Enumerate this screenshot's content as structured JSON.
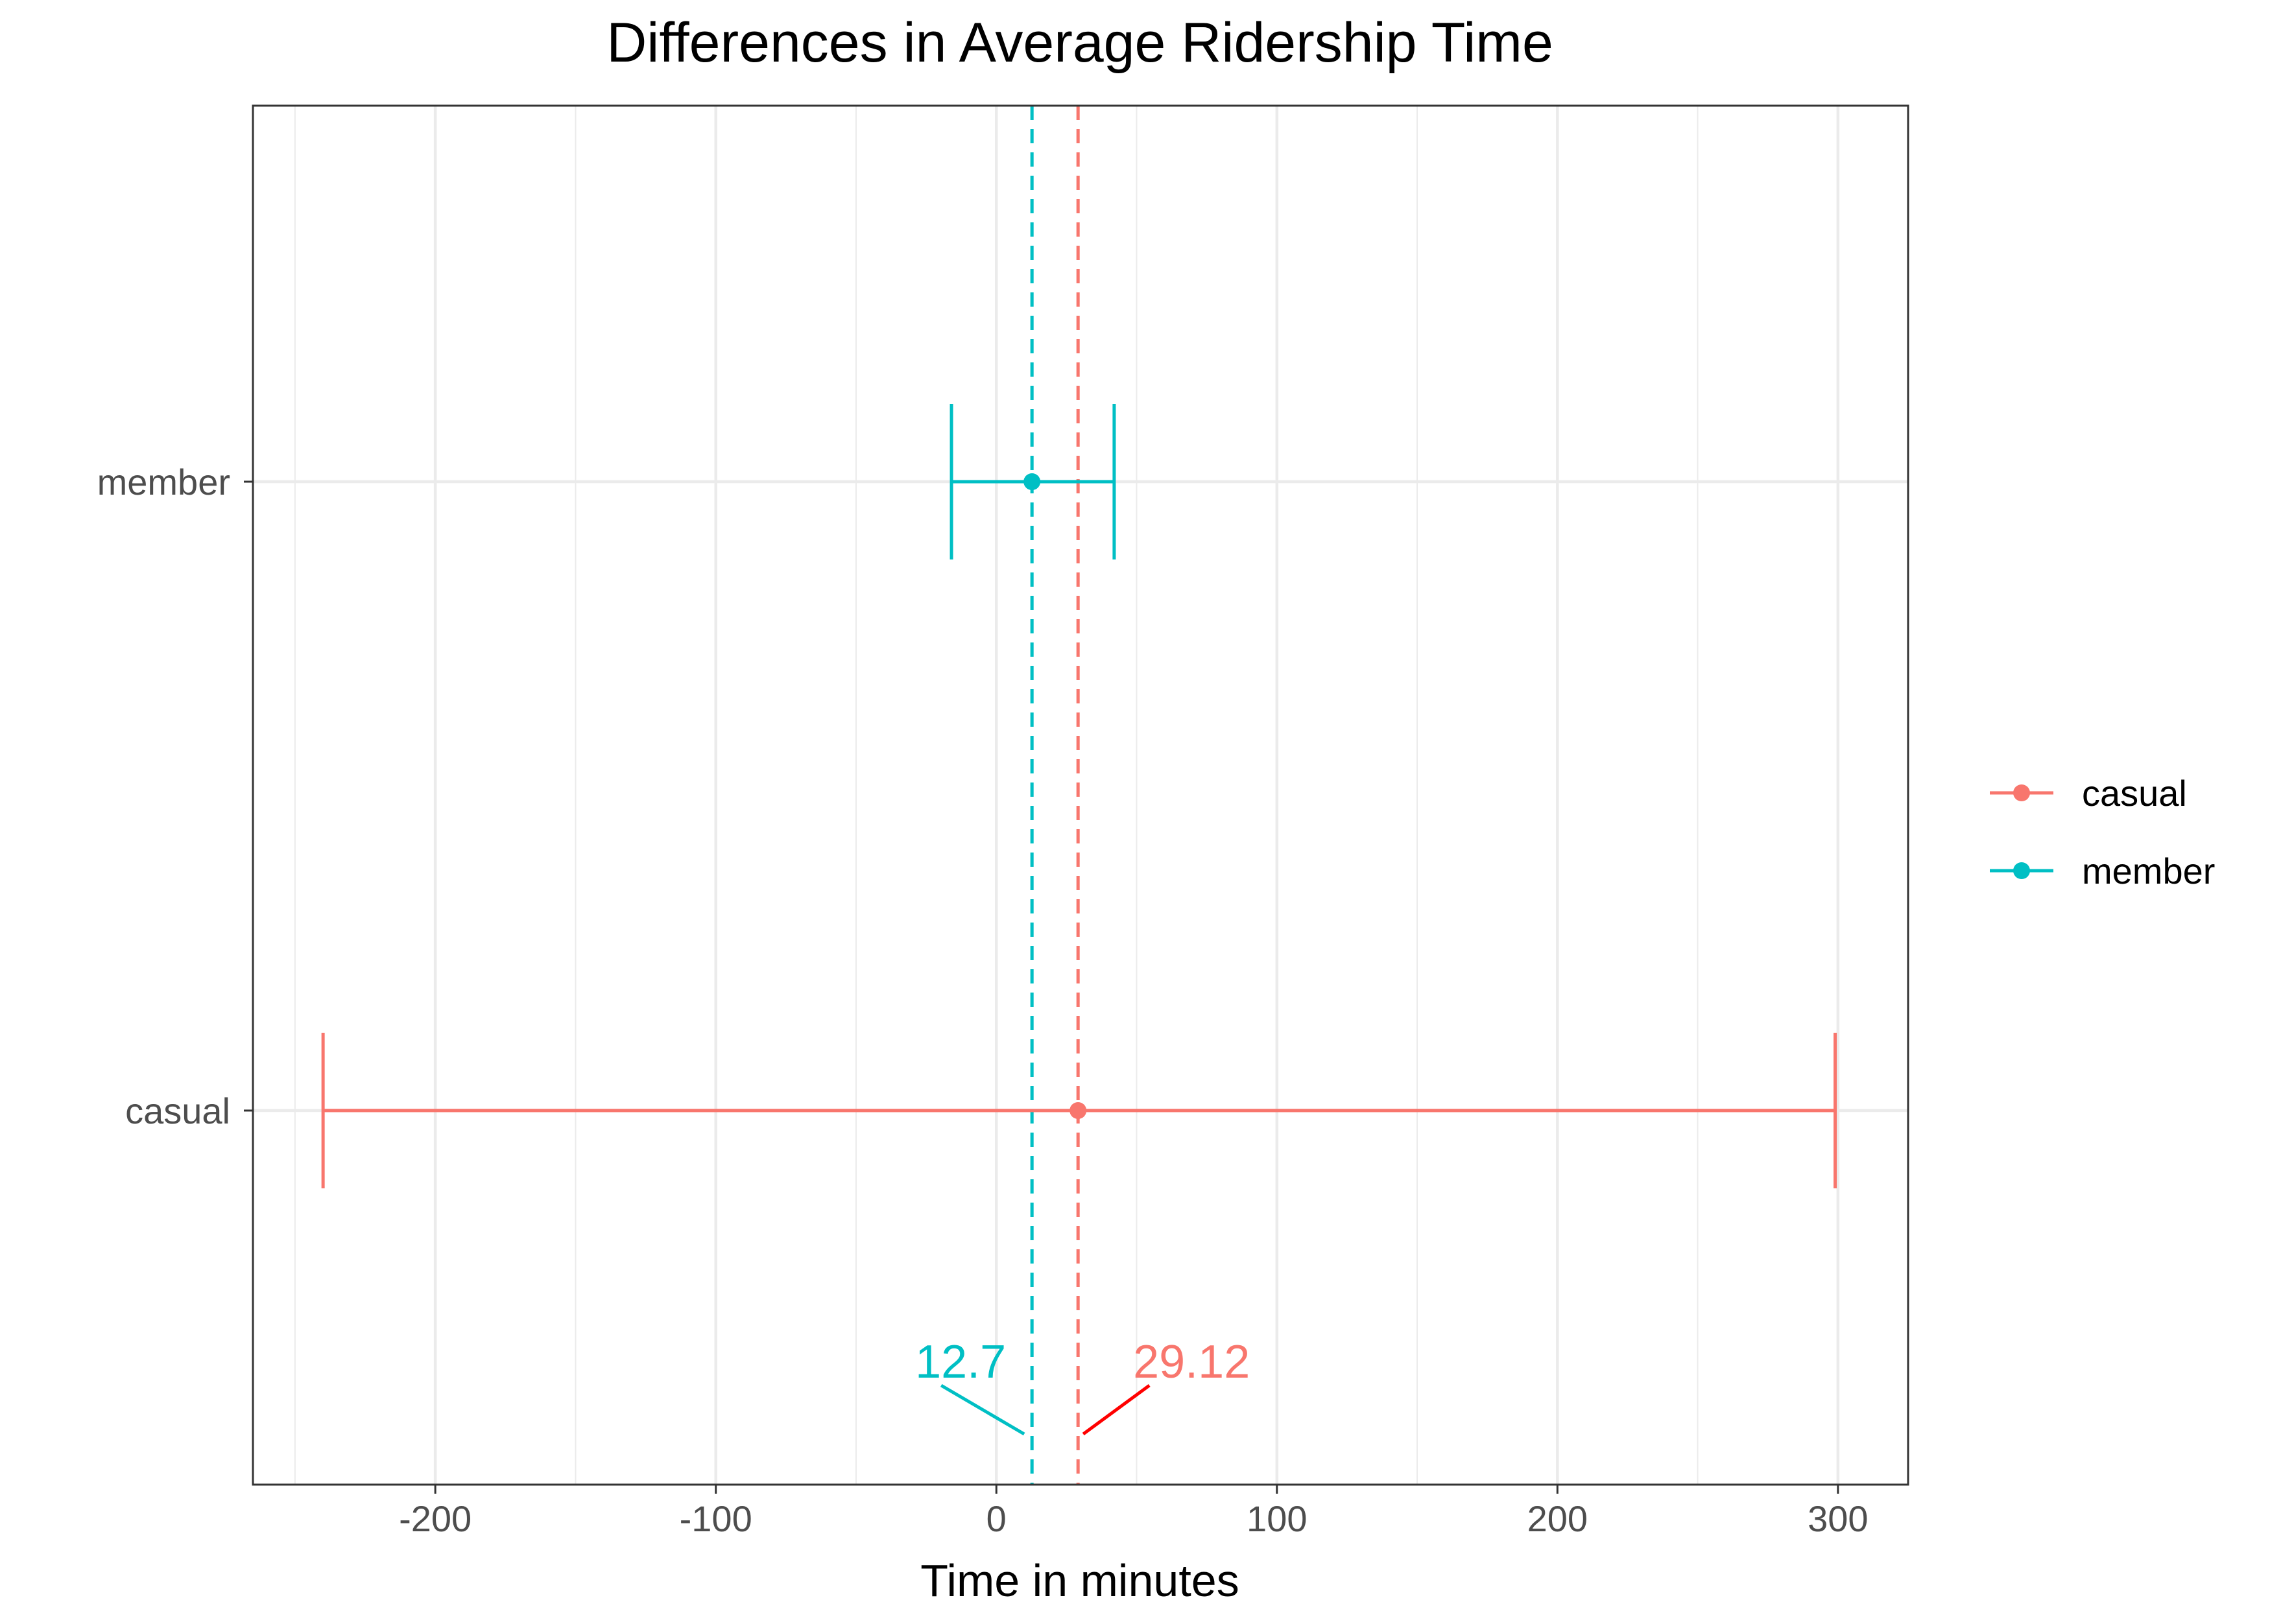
{
  "chart_data": {
    "type": "errorbar",
    "title": "Differences in Average Ridership Time",
    "xlabel": "Time in minutes",
    "ylabel": "",
    "xlim": [
      -265,
      325
    ],
    "x_ticks": [
      -200,
      -100,
      0,
      100,
      200,
      300
    ],
    "x_tick_labels": [
      "-200",
      "-100",
      "0",
      "100",
      "200",
      "300"
    ],
    "x_minor_gridlines": [
      -250,
      -150,
      -50,
      50,
      150,
      250
    ],
    "categories": [
      "casual",
      "member"
    ],
    "grid": true,
    "legend_position": "right",
    "series": [
      {
        "name": "casual",
        "color": "#F8766D",
        "mean": 29.12,
        "lower": -240,
        "upper": 299
      },
      {
        "name": "member",
        "color": "#00BFC4",
        "mean": 12.7,
        "lower": -16,
        "upper": 42
      }
    ],
    "reference_lines": [
      {
        "series": "member",
        "x": 12.7,
        "style": "dashed",
        "color": "#00BFC4"
      },
      {
        "series": "casual",
        "x": 29.12,
        "style": "dashed",
        "color": "#F8766D"
      }
    ],
    "annotations": [
      {
        "text": "12.7",
        "x": 12.7,
        "color": "#00BFC4",
        "leader_color": "#00BFC4",
        "side": "left"
      },
      {
        "text": "29.12",
        "x": 29.12,
        "color": "#F8766D",
        "leader_color": "#FF0000",
        "side": "right"
      }
    ]
  }
}
